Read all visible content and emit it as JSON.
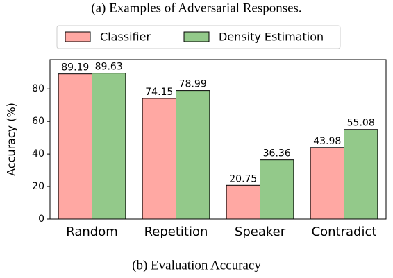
{
  "chart_data": {
    "type": "bar",
    "caption_top": "(a) Examples of Adversarial Responses.",
    "caption_bottom": "(b) Evaluation Accuracy",
    "ylabel": "Accuracy (%)",
    "categories": [
      "Random",
      "Repetition",
      "Speaker",
      "Contradict"
    ],
    "series": [
      {
        "name": "Classifier",
        "color": "#ffa8a3",
        "values": [
          89.19,
          74.15,
          20.75,
          43.98
        ]
      },
      {
        "name": "Density Estimation",
        "color": "#93c98a",
        "values": [
          89.63,
          78.99,
          36.36,
          55.08
        ]
      }
    ],
    "ylim": [
      0,
      98
    ],
    "yticks": [
      0,
      20,
      40,
      60,
      80
    ],
    "grid": false,
    "legend": "top"
  }
}
